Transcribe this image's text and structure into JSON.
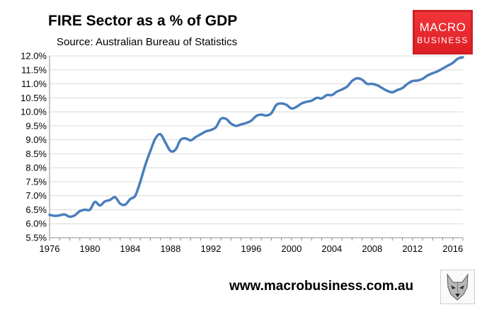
{
  "header": {
    "title": "FIRE Sector as a % of GDP",
    "subtitle": "Source: Australian Bureau of Statistics"
  },
  "logo": {
    "line1": "MACRO",
    "line2": "BUSINESS",
    "color": "#ed1c24"
  },
  "footer": {
    "website": "www.macrobusiness.com.au",
    "mascot_icon": "wolf-head-icon"
  },
  "chart_data": {
    "type": "line",
    "title": "FIRE Sector as a % of GDP",
    "subtitle": "Source: Australian Bureau of Statistics",
    "xlabel": "",
    "ylabel": "",
    "xlim": [
      1976,
      2017
    ],
    "ylim": [
      5.5,
      12.0
    ],
    "x_ticks": [
      1976,
      1980,
      1984,
      1988,
      1992,
      1996,
      2000,
      2004,
      2008,
      2012,
      2016
    ],
    "x_tick_labels": [
      "1976",
      "1980",
      "1984",
      "1988",
      "1992",
      "1996",
      "2000",
      "2004",
      "2008",
      "2012",
      "2016"
    ],
    "y_ticks": [
      5.5,
      6.0,
      6.5,
      7.0,
      7.5,
      8.0,
      8.5,
      9.0,
      9.5,
      10.0,
      10.5,
      11.0,
      11.5,
      12.0
    ],
    "y_tick_labels": [
      "5.5%",
      "6.0%",
      "6.5%",
      "7.0%",
      "7.5%",
      "8.0%",
      "8.5%",
      "9.0%",
      "9.5%",
      "10.0%",
      "10.5%",
      "11.0%",
      "11.5%",
      "12.0%"
    ],
    "grid": "horizontal",
    "line_color": "#4a7ebb",
    "series": [
      {
        "x": [
          1976,
          1976.5,
          1977,
          1977.5,
          1978,
          1978.5,
          1979,
          1979.5,
          1980,
          1980.5,
          1981,
          1981.5,
          1982,
          1982.5,
          1983,
          1983.5,
          1984,
          1984.5,
          1985,
          1985.5,
          1986,
          1986.5,
          1987,
          1987.5,
          1988,
          1988.5,
          1989,
          1989.5,
          1990,
          1990.5,
          1991,
          1991.5,
          1992,
          1992.5,
          1993,
          1993.5,
          1994,
          1994.5,
          1995,
          1995.5,
          1996,
          1996.5,
          1997,
          1997.5,
          1998,
          1998.5,
          1999,
          1999.5,
          2000,
          2000.5,
          2001,
          2001.5,
          2002,
          2002.5,
          2003,
          2003.5,
          2004,
          2004.5,
          2005,
          2005.5,
          2006,
          2006.5,
          2007,
          2007.5,
          2008,
          2008.5,
          2009,
          2009.5,
          2010,
          2010.5,
          2011,
          2011.5,
          2012,
          2012.5,
          2013,
          2013.5,
          2014,
          2014.5,
          2015,
          2015.5,
          2016,
          2016.5,
          2017
        ],
        "values": [
          6.32,
          6.28,
          6.3,
          6.33,
          6.25,
          6.3,
          6.45,
          6.5,
          6.5,
          6.78,
          6.65,
          6.8,
          6.85,
          6.95,
          6.72,
          6.68,
          6.88,
          7.0,
          7.5,
          8.1,
          8.6,
          9.05,
          9.2,
          8.9,
          8.6,
          8.65,
          9.0,
          9.05,
          8.98,
          9.1,
          9.2,
          9.3,
          9.35,
          9.45,
          9.75,
          9.75,
          9.58,
          9.5,
          9.55,
          9.6,
          9.68,
          9.85,
          9.9,
          9.87,
          9.95,
          10.25,
          10.3,
          10.25,
          10.12,
          10.18,
          10.3,
          10.36,
          10.4,
          10.5,
          10.48,
          10.6,
          10.6,
          10.72,
          10.8,
          10.9,
          11.1,
          11.2,
          11.15,
          11.0,
          11.0,
          10.95,
          10.85,
          10.75,
          10.7,
          10.78,
          10.85,
          11.0,
          11.1,
          11.12,
          11.18,
          11.3,
          11.38,
          11.45,
          11.55,
          11.65,
          11.75,
          11.9,
          11.95
        ]
      }
    ]
  }
}
